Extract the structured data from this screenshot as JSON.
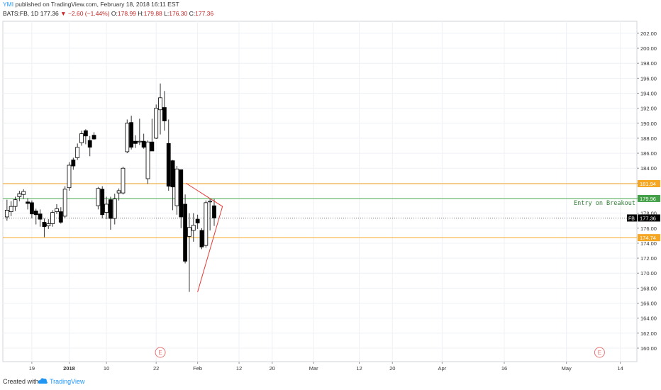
{
  "header": {
    "author": "YMI",
    "published": " published on TradingView.com, February 18, 2018 16:11 EST"
  },
  "quote": {
    "symbol": "BATS:FB, 1D",
    "last": "177.36",
    "change": "−2.60 (−1.44%)",
    "o_label": "O:",
    "o": "178.99",
    "h_label": "H:",
    "h": "179.88",
    "l_label": "L:",
    "l": "176.30",
    "c_label": "C:",
    "c": "177.36"
  },
  "colors": {
    "grid": "#eef1f5",
    "up_fill": "#ffffff",
    "down_fill": "#000000",
    "wick": "#333333",
    "orange_line": "#f5a623",
    "green_line": "#4caf50",
    "triangle": "#e53935",
    "last_price_label": "#000000",
    "earnings": "#e57373"
  },
  "chart_data": {
    "type": "candlestick",
    "y_axis": {
      "min": 158.2,
      "max": 203.6,
      "ticks": [
        160,
        162,
        164,
        166,
        168,
        170,
        172,
        174,
        176,
        178,
        180,
        182,
        184,
        186,
        188,
        190,
        192,
        194,
        196,
        198,
        200,
        202
      ]
    },
    "y_tick_labels": [
      "160.00",
      "162.00",
      "164.00",
      "166.00",
      "168.00",
      "170.00",
      "172.00",
      "174.00",
      "176.00",
      "178.00",
      "180.00",
      "182.00",
      "184.00",
      "186.00",
      "188.00",
      "190.00",
      "192.00",
      "194.00",
      "196.00",
      "198.00",
      "200.00",
      "202.00"
    ],
    "x_tick_labels": [
      {
        "label": "19",
        "day": 16
      },
      {
        "label": "2018",
        "day": 25,
        "bold": true
      },
      {
        "label": "10",
        "day": 34
      },
      {
        "label": "22",
        "day": 46
      },
      {
        "label": "Feb",
        "day": 56
      },
      {
        "label": "12",
        "day": 66
      },
      {
        "label": "20",
        "day": 74
      },
      {
        "label": "Mar",
        "day": 84
      },
      {
        "label": "12",
        "day": 95
      },
      {
        "label": "20",
        "day": 103
      },
      {
        "label": "Apr",
        "day": 115
      },
      {
        "label": "16",
        "day": 130
      },
      {
        "label": "May",
        "day": 145
      },
      {
        "label": "14",
        "day": 158
      }
    ],
    "x_domain": [
      9,
      162
    ],
    "candles": [
      {
        "d": 10,
        "o": 177.5,
        "h": 179.8,
        "l": 177.0,
        "c": 178.4
      },
      {
        "d": 11,
        "o": 178.2,
        "h": 179.6,
        "l": 177.6,
        "c": 178.9
      },
      {
        "d": 12,
        "o": 178.9,
        "h": 180.2,
        "l": 178.3,
        "c": 179.8
      },
      {
        "d": 13,
        "o": 180.2,
        "h": 181.0,
        "l": 179.6,
        "c": 180.6
      },
      {
        "d": 14,
        "o": 180.5,
        "h": 181.2,
        "l": 179.9,
        "c": 180.9
      },
      {
        "d": 15,
        "o": 179.5,
        "h": 180.0,
        "l": 178.5,
        "c": 179.3
      },
      {
        "d": 16,
        "o": 179.4,
        "h": 179.7,
        "l": 177.3,
        "c": 177.9
      },
      {
        "d": 17,
        "o": 178.3,
        "h": 178.6,
        "l": 176.5,
        "c": 177.8
      },
      {
        "d": 18,
        "o": 177.9,
        "h": 178.5,
        "l": 176.2,
        "c": 177.2
      },
      {
        "d": 19,
        "o": 176.8,
        "h": 177.3,
        "l": 174.8,
        "c": 176.2
      },
      {
        "d": 20,
        "o": 176.3,
        "h": 177.2,
        "l": 175.9,
        "c": 176.6
      },
      {
        "d": 21,
        "o": 176.6,
        "h": 178.4,
        "l": 176.2,
        "c": 178.1
      },
      {
        "d": 22,
        "o": 178.2,
        "h": 179.2,
        "l": 177.9,
        "c": 178.6
      },
      {
        "d": 23,
        "o": 178.2,
        "h": 178.8,
        "l": 176.6,
        "c": 176.8
      },
      {
        "d": 24,
        "o": 177.6,
        "h": 181.6,
        "l": 177.3,
        "c": 181.2
      },
      {
        "d": 25,
        "o": 181.4,
        "h": 184.8,
        "l": 181.0,
        "c": 184.4
      },
      {
        "d": 26,
        "o": 185.1,
        "h": 185.4,
        "l": 183.8,
        "c": 184.3
      },
      {
        "d": 27,
        "o": 185.4,
        "h": 187.3,
        "l": 185.1,
        "c": 186.8
      },
      {
        "d": 28,
        "o": 187.4,
        "h": 189.0,
        "l": 187.0,
        "c": 188.6
      },
      {
        "d": 29,
        "o": 189.0,
        "h": 189.2,
        "l": 187.2,
        "c": 188.3
      },
      {
        "d": 30,
        "o": 187.7,
        "h": 188.3,
        "l": 185.6,
        "c": 186.8
      },
      {
        "d": 31,
        "o": 188.4,
        "h": 188.8,
        "l": 187.8,
        "c": 187.9
      },
      {
        "d": 32,
        "o": 179.0,
        "h": 181.5,
        "l": 178.5,
        "c": 181.3
      },
      {
        "d": 33,
        "o": 181.2,
        "h": 181.6,
        "l": 177.3,
        "c": 177.8
      },
      {
        "d": 34,
        "o": 178.1,
        "h": 180.2,
        "l": 177.2,
        "c": 179.2
      },
      {
        "d": 35,
        "o": 179.8,
        "h": 180.2,
        "l": 175.8,
        "c": 177.3
      },
      {
        "d": 36,
        "o": 177.3,
        "h": 180.6,
        "l": 176.5,
        "c": 179.9
      },
      {
        "d": 37,
        "o": 180.7,
        "h": 181.3,
        "l": 179.7,
        "c": 181.0
      },
      {
        "d": 38,
        "o": 180.7,
        "h": 184.2,
        "l": 180.5,
        "c": 184.0
      },
      {
        "d": 39,
        "o": 186.2,
        "h": 190.5,
        "l": 186.0,
        "c": 190.0
      },
      {
        "d": 40,
        "o": 190.1,
        "h": 191.0,
        "l": 186.5,
        "c": 186.8
      },
      {
        "d": 41,
        "o": 187.6,
        "h": 188.4,
        "l": 186.7,
        "c": 187.3
      },
      {
        "d": 42,
        "o": 187.5,
        "h": 190.6,
        "l": 187.1,
        "c": 187.6
      },
      {
        "d": 43,
        "o": 187.6,
        "h": 188.6,
        "l": 186.6,
        "c": 186.8
      },
      {
        "d": 44,
        "o": 182.6,
        "h": 187.7,
        "l": 181.9,
        "c": 187.5
      },
      {
        "d": 45,
        "o": 187.5,
        "h": 190.6,
        "l": 186.7,
        "c": 186.3
      },
      {
        "d": 46,
        "o": 188.0,
        "h": 192.5,
        "l": 187.9,
        "c": 192.0
      },
      {
        "d": 47,
        "o": 191.8,
        "h": 195.3,
        "l": 188.5,
        "c": 193.4
      },
      {
        "d": 48,
        "o": 192.1,
        "h": 194.3,
        "l": 189.0,
        "c": 190.3
      },
      {
        "d": 49,
        "o": 187.3,
        "h": 190.5,
        "l": 181.0,
        "c": 181.6
      },
      {
        "d": 50,
        "o": 185.0,
        "h": 185.1,
        "l": 178.4,
        "c": 181.5
      },
      {
        "d": 51,
        "o": 179.0,
        "h": 184.3,
        "l": 177.8,
        "c": 183.9
      },
      {
        "d": 52,
        "o": 183.8,
        "h": 183.8,
        "l": 176.0,
        "c": 177.5
      },
      {
        "d": 53,
        "o": 179.2,
        "h": 180.5,
        "l": 171.3,
        "c": 171.6
      },
      {
        "d": 54,
        "o": 174.9,
        "h": 178.0,
        "l": 167.5,
        "c": 176.1
      },
      {
        "d": 55,
        "o": 175.7,
        "h": 178.0,
        "l": 174.2,
        "c": 176.4
      },
      {
        "d": 56,
        "o": 177.2,
        "h": 177.8,
        "l": 175.9,
        "c": 176.7
      },
      {
        "d": 57,
        "o": 175.7,
        "h": 176.0,
        "l": 173.2,
        "c": 173.5
      },
      {
        "d": 58,
        "o": 173.7,
        "h": 179.7,
        "l": 173.4,
        "c": 179.4
      },
      {
        "d": 59,
        "o": 179.5,
        "h": 179.9,
        "l": 175.7,
        "c": 179.6
      },
      {
        "d": 60,
        "o": 178.99,
        "h": 179.88,
        "l": 176.3,
        "c": 177.36
      }
    ],
    "horizontal_lines": [
      {
        "value": 181.94,
        "label": "181.94",
        "color": "orange"
      },
      {
        "value": 179.96,
        "label": "179.96",
        "color": "green",
        "text": "Entry on Breakout"
      },
      {
        "value": 174.74,
        "label": "174.74",
        "color": "orange"
      }
    ],
    "last_price": {
      "value": 177.36,
      "symbol": "FB",
      "label": "177.36"
    },
    "triangle": [
      {
        "d": 53.2,
        "v": 182.0
      },
      {
        "d": 56.0,
        "v": 167.5
      },
      {
        "d": 62.0,
        "v": 178.9
      }
    ],
    "earnings_markers": [
      {
        "day": 47,
        "label": "E"
      },
      {
        "day": 153,
        "label": "E"
      }
    ]
  },
  "footer": {
    "created": "Created with",
    "brand": "TradingView"
  }
}
